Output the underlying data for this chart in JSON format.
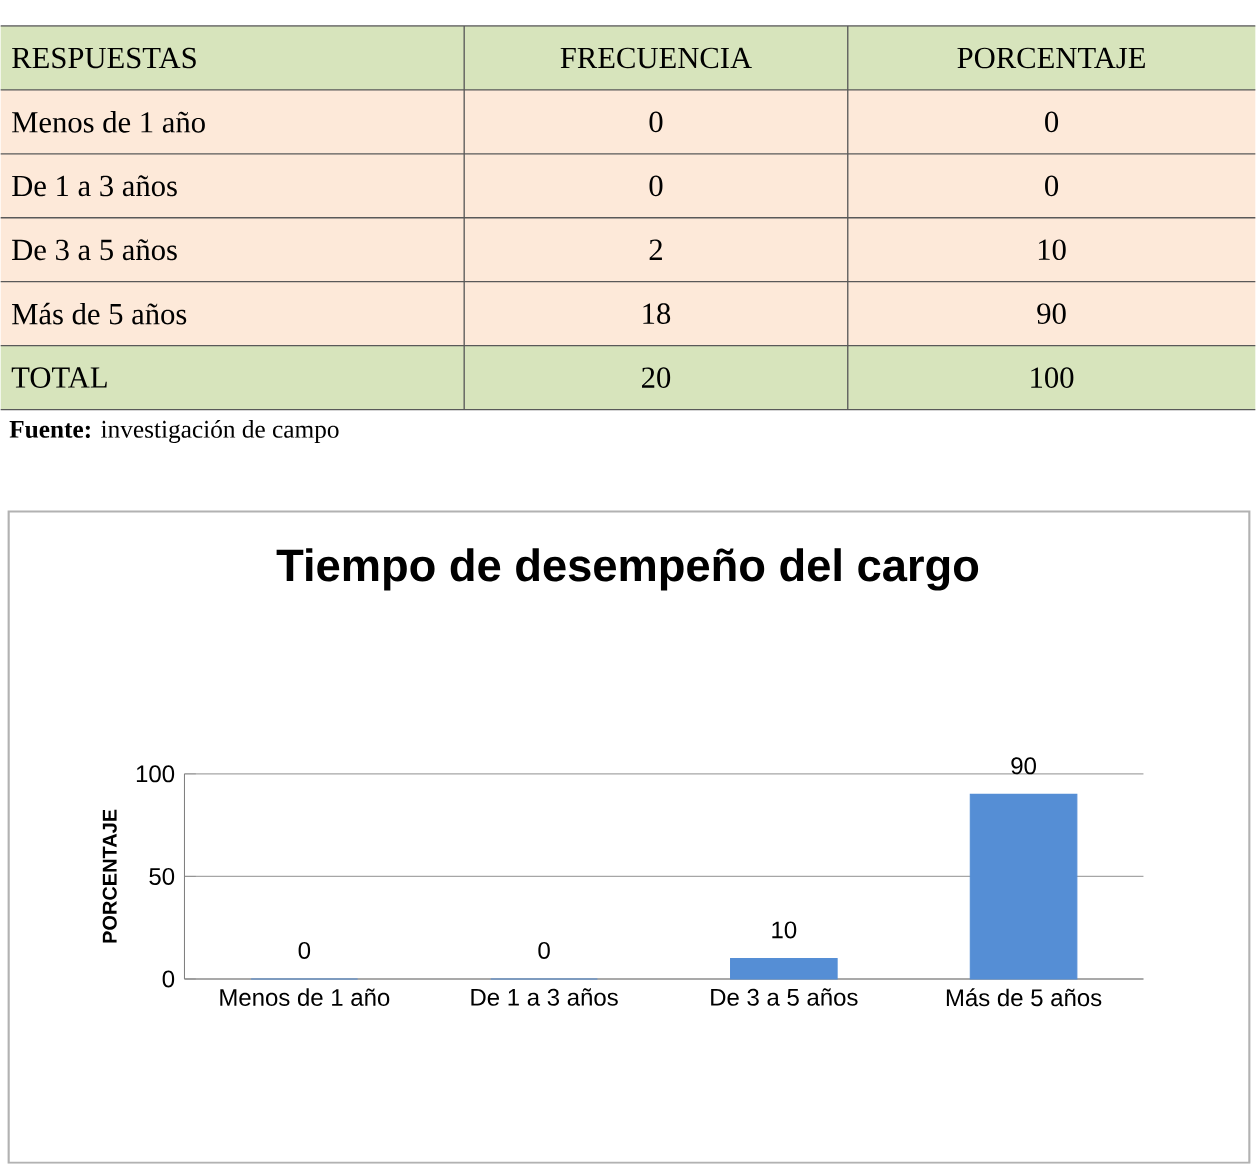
{
  "chart_data": [
    {
      "type": "other",
      "annotations": [
        "RESPUESTAS",
        "FRECUENCIA",
        "PORCENTAJE",
        "Menos de 1 año",
        "0",
        "0",
        "De 1 a 3 años",
        "0",
        "0",
        "De 3 a 5 años",
        "2",
        "10",
        "Más de 5 años",
        "18",
        "90",
        "TOTAL",
        "20",
        "100",
        "**Fuente:** investigación de campo"
      ]
    },
    {
      "type": "bar",
      "title": "Tiempo de desempeño del cargo",
      "ylabel": "PORCENTAJE",
      "categories": [
        "Menos de 1 año",
        "De 1 a 3 años",
        "De 3 a 5 años",
        "Más de 5 años"
      ],
      "values": [
        0,
        0,
        10,
        90
      ],
      "color": "#558ed5",
      "ylim": [
        0,
        100
      ],
      "yticks": [
        0,
        50,
        100
      ],
      "grid": "y",
      "data_labels": true
    }
  ]
}
